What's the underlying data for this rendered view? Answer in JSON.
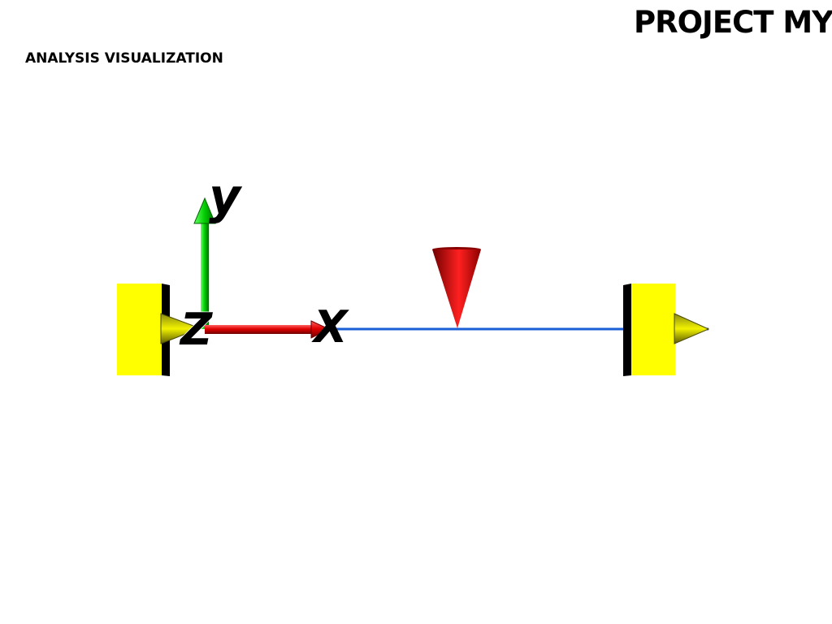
{
  "header": {
    "title": "PROJECT MYI",
    "subtitle": "ANALYSIS VISUALIZATION"
  },
  "axes": {
    "x_label": "X",
    "y_label": "y",
    "z_label": "Z"
  },
  "colors": {
    "support": "#ffff00",
    "support_edge": "#000000",
    "beam": "#1a5fd6",
    "load": "#dd0000",
    "x_axis": "#e00000",
    "y_axis": "#00cc00",
    "reaction_arrow": "#e8e800"
  },
  "icons": {
    "left_support": "fixed-support-icon",
    "right_support": "fixed-support-icon",
    "load": "cone-load-icon"
  }
}
